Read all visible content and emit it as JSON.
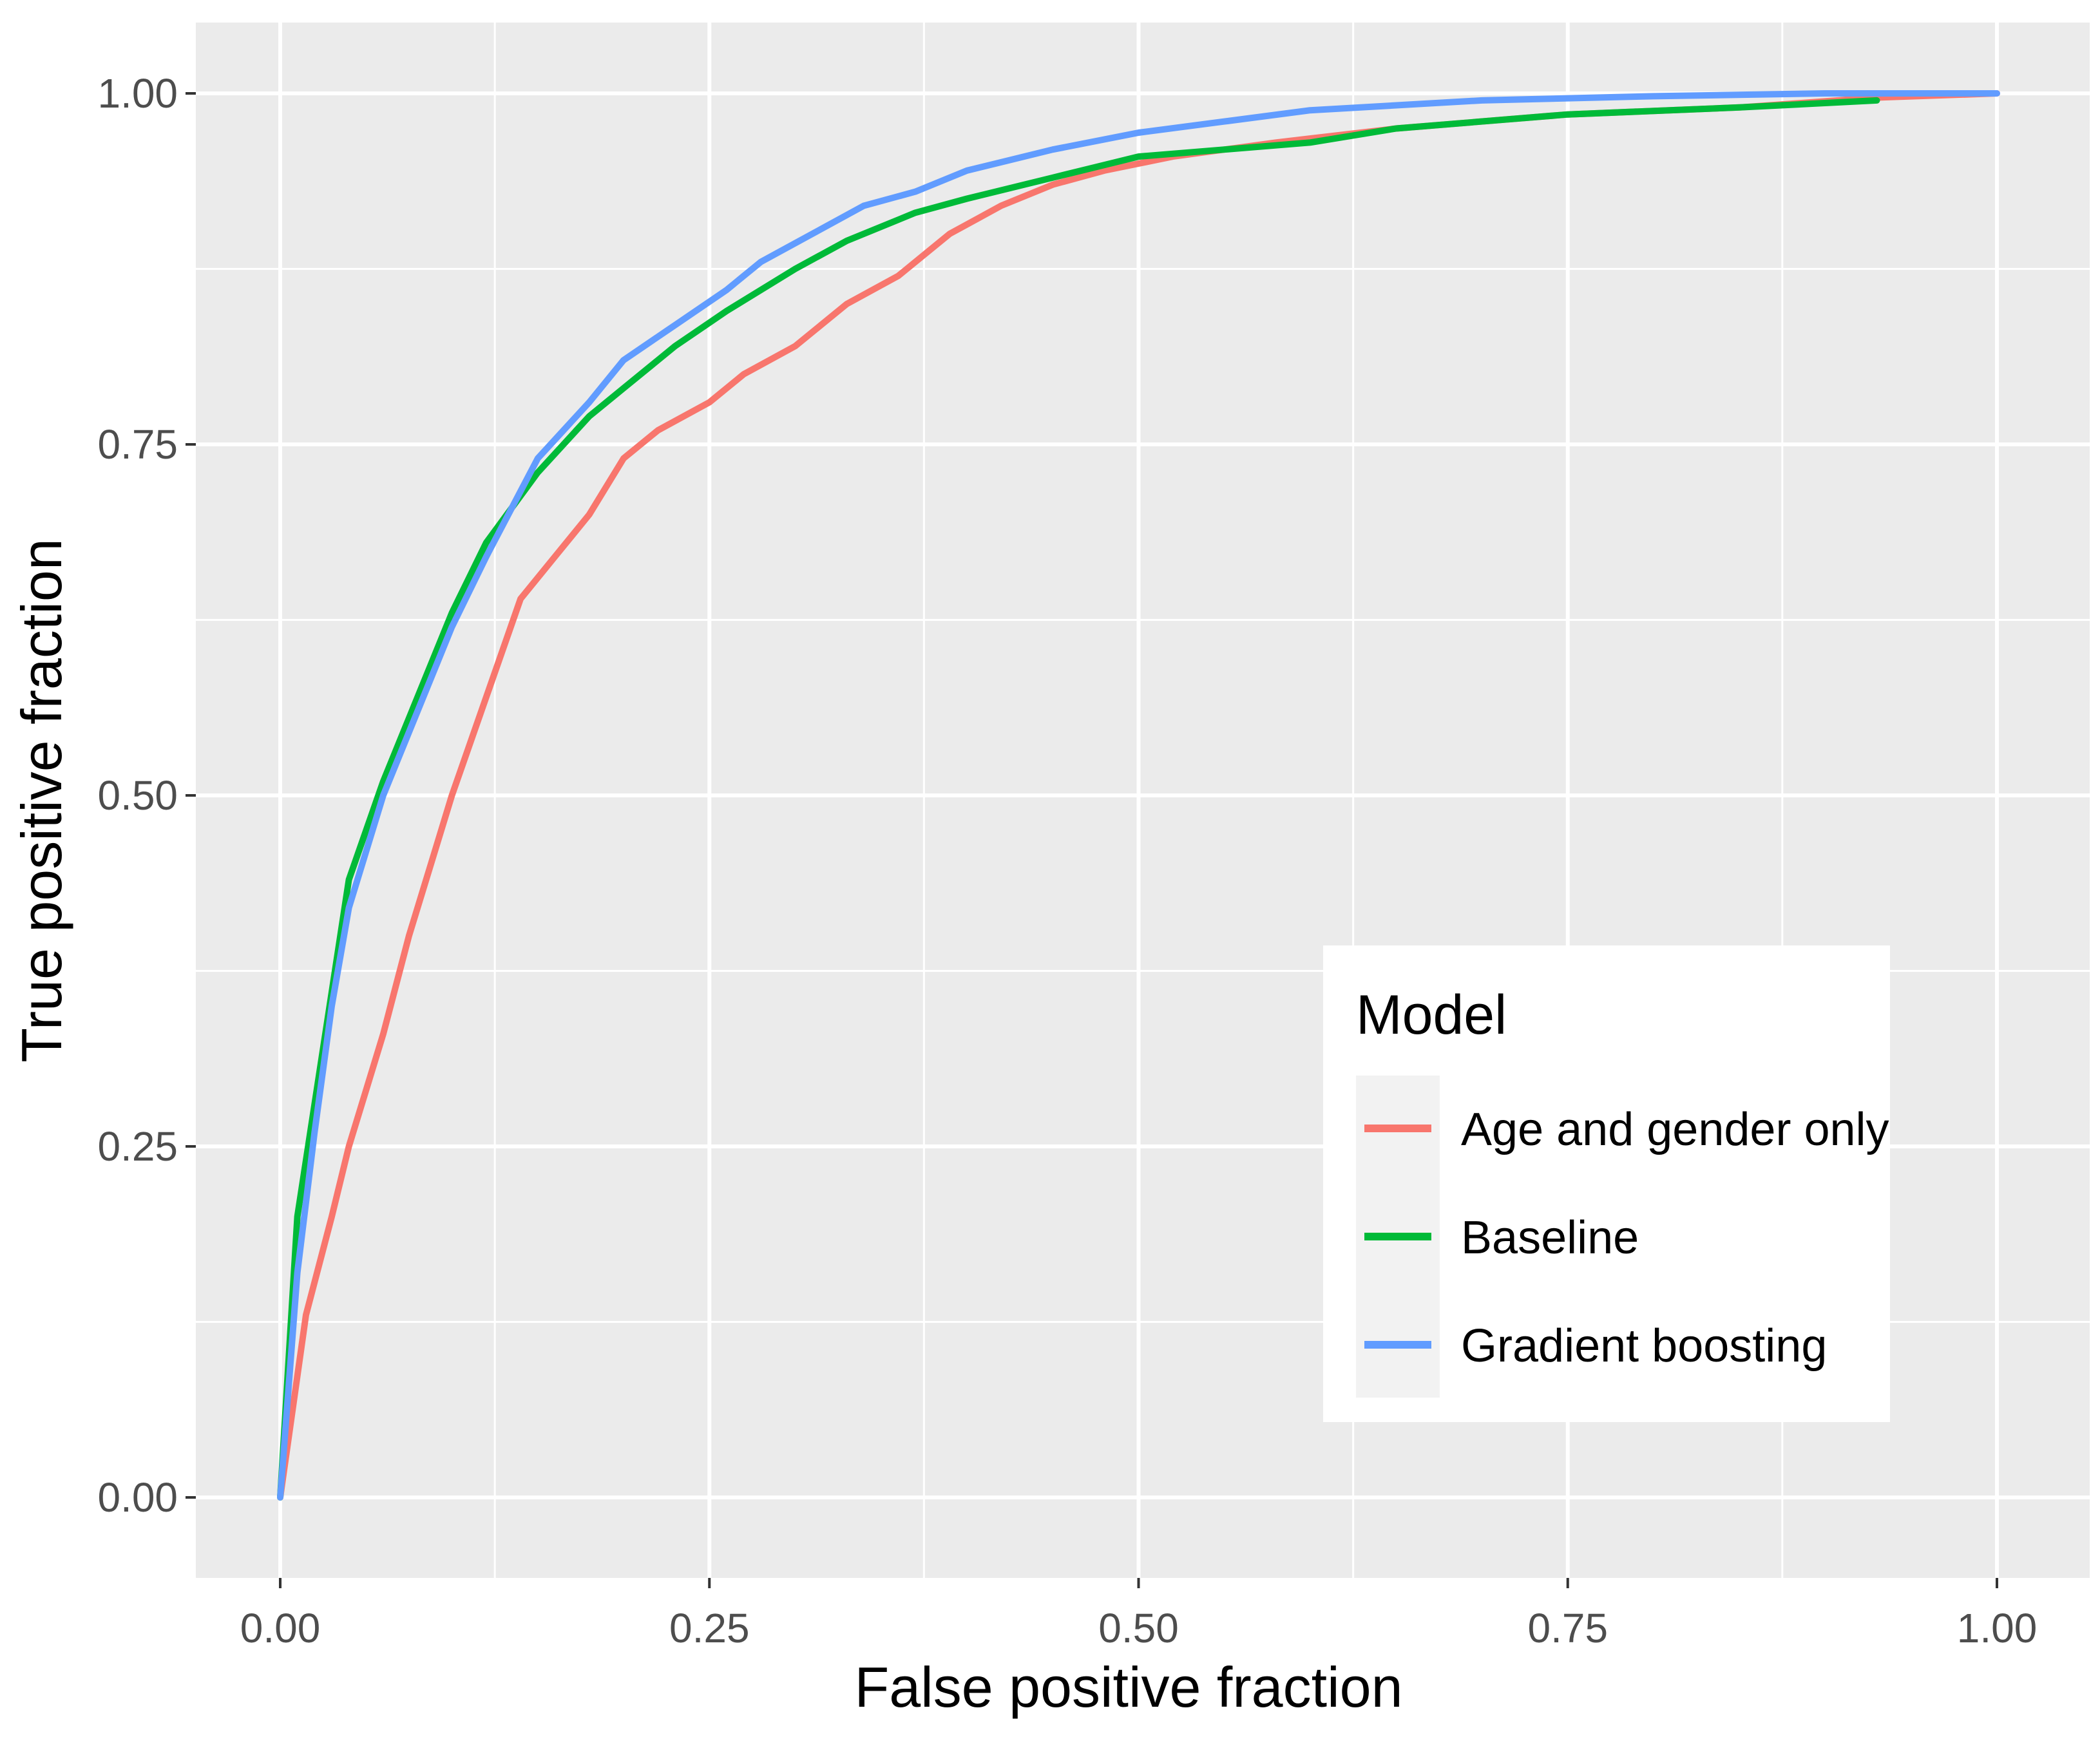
{
  "chart_data": {
    "type": "line",
    "title": "",
    "xlabel": "False positive fraction",
    "ylabel": "True positive fraction",
    "xlim": [
      0,
      1
    ],
    "ylim": [
      0,
      1
    ],
    "x_ticks": [
      "0.00",
      "0.25",
      "0.50",
      "0.75",
      "1.00"
    ],
    "y_ticks": [
      "0.00",
      "0.25",
      "0.50",
      "0.75",
      "1.00"
    ],
    "grid": true,
    "legend": {
      "title": "Model",
      "position": "bottom-right"
    },
    "series": [
      {
        "name": "Age and gender only",
        "color": "#F8766D",
        "x": [
          0,
          0.015,
          0.03,
          0.04,
          0.06,
          0.075,
          0.09,
          0.1,
          0.12,
          0.14,
          0.16,
          0.18,
          0.2,
          0.22,
          0.25,
          0.27,
          0.3,
          0.33,
          0.36,
          0.39,
          0.42,
          0.45,
          0.48,
          0.52,
          0.58,
          0.65,
          0.75,
          0.85,
          0.93,
          1.0
        ],
        "y": [
          0,
          0.13,
          0.2,
          0.25,
          0.33,
          0.4,
          0.46,
          0.5,
          0.57,
          0.64,
          0.67,
          0.7,
          0.74,
          0.76,
          0.78,
          0.8,
          0.82,
          0.85,
          0.87,
          0.9,
          0.92,
          0.935,
          0.945,
          0.955,
          0.965,
          0.975,
          0.985,
          0.99,
          0.997,
          1.0
        ]
      },
      {
        "name": "Baseline",
        "color": "#00BA38",
        "x": [
          0,
          0.01,
          0.02,
          0.03,
          0.04,
          0.06,
          0.08,
          0.1,
          0.12,
          0.15,
          0.18,
          0.2,
          0.23,
          0.26,
          0.3,
          0.33,
          0.37,
          0.4,
          0.45,
          0.5,
          0.55,
          0.6,
          0.65,
          0.75,
          0.85,
          0.93
        ],
        "y": [
          0,
          0.2,
          0.28,
          0.36,
          0.44,
          0.51,
          0.57,
          0.63,
          0.68,
          0.73,
          0.77,
          0.79,
          0.82,
          0.845,
          0.875,
          0.895,
          0.915,
          0.925,
          0.94,
          0.955,
          0.96,
          0.965,
          0.975,
          0.985,
          0.99,
          0.995
        ]
      },
      {
        "name": "Gradient boosting",
        "color": "#619CFF",
        "x": [
          0,
          0.01,
          0.02,
          0.03,
          0.04,
          0.06,
          0.08,
          0.1,
          0.12,
          0.15,
          0.18,
          0.2,
          0.23,
          0.26,
          0.28,
          0.31,
          0.34,
          0.37,
          0.4,
          0.45,
          0.5,
          0.55,
          0.6,
          0.7,
          0.8,
          0.9,
          1.0
        ],
        "y": [
          0,
          0.16,
          0.26,
          0.35,
          0.42,
          0.5,
          0.56,
          0.62,
          0.67,
          0.74,
          0.78,
          0.81,
          0.835,
          0.86,
          0.88,
          0.9,
          0.92,
          0.93,
          0.945,
          0.96,
          0.972,
          0.98,
          0.988,
          0.995,
          0.998,
          1.0,
          1.0
        ]
      }
    ]
  }
}
